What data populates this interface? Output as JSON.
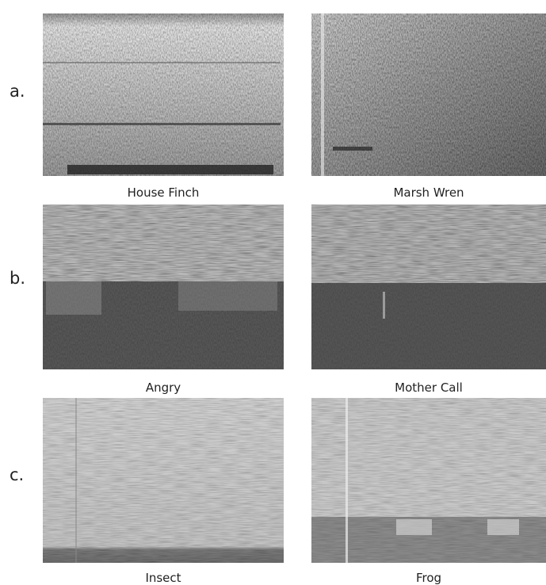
{
  "rows": [
    {
      "label": "a.",
      "panels": [
        {
          "caption": "House Finch"
        },
        {
          "caption": "Marsh Wren"
        }
      ]
    },
    {
      "label": "b.",
      "panels": [
        {
          "caption": "Angry"
        },
        {
          "caption": "Mother Call"
        }
      ]
    },
    {
      "label": "c.",
      "panels": [
        {
          "caption": "Insect"
        },
        {
          "caption": "Frog"
        }
      ]
    }
  ]
}
